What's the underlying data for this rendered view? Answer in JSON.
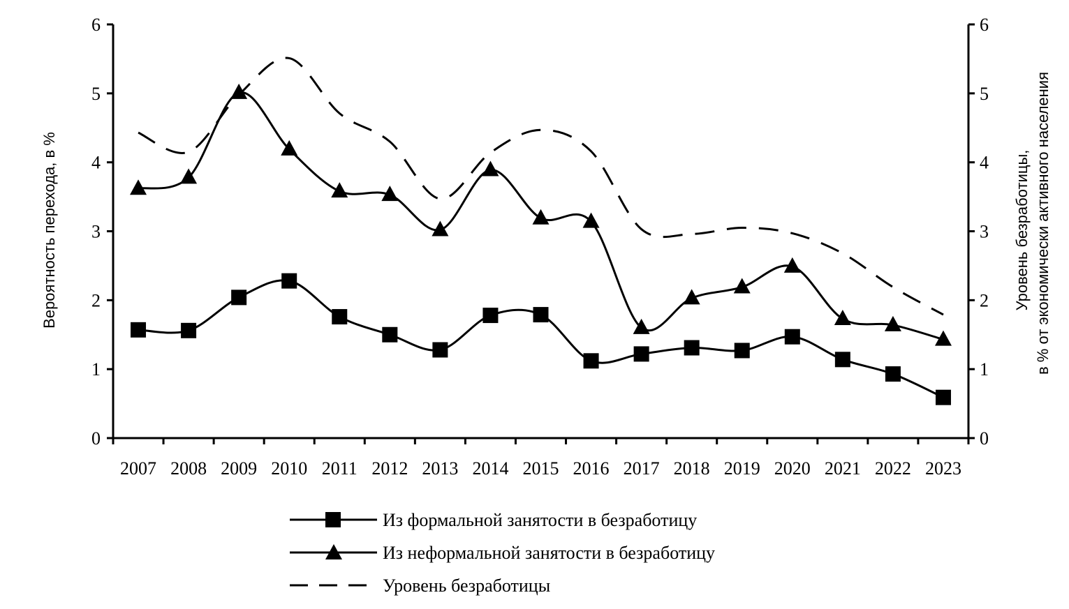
{
  "chart_data": {
    "type": "line",
    "categories": [
      "2007",
      "2008",
      "2009",
      "2010",
      "2011",
      "2012",
      "2013",
      "2014",
      "2015",
      "2016",
      "2017",
      "2018",
      "2019",
      "2020",
      "2021",
      "2022",
      "2023"
    ],
    "series": [
      {
        "name": "Из формальной занятости в безработицу",
        "axis": "left",
        "marker": "square",
        "line_style": "solid",
        "values": [
          1.57,
          1.56,
          2.04,
          2.28,
          1.76,
          1.5,
          1.28,
          1.78,
          1.79,
          1.12,
          1.22,
          1.31,
          1.27,
          1.47,
          1.14,
          0.93,
          0.59
        ]
      },
      {
        "name": "Из неформальной занятости в безработицу",
        "axis": "left",
        "marker": "triangle",
        "line_style": "solid",
        "values": [
          3.62,
          3.78,
          5.01,
          4.19,
          3.58,
          3.53,
          3.02,
          3.89,
          3.19,
          3.14,
          1.6,
          2.03,
          2.19,
          2.49,
          1.73,
          1.64,
          1.43
        ]
      },
      {
        "name": "Уровень безработицы",
        "axis": "right",
        "marker": "none",
        "line_style": "dashed",
        "values": [
          4.43,
          4.15,
          4.98,
          5.51,
          4.71,
          4.3,
          3.47,
          4.14,
          4.47,
          4.16,
          3.03,
          2.96,
          3.05,
          2.97,
          2.68,
          2.19,
          1.79
        ]
      }
    ],
    "y_left": {
      "label": "Вероятность перехода,  в %",
      "ylim": [
        0,
        6
      ],
      "ticks": [
        "0",
        "1",
        "2",
        "3",
        "4",
        "5",
        "6"
      ]
    },
    "y_right": {
      "label_line1": "Уровень безработицы,",
      "label_line2": "в % от экономически активного населения",
      "ylim": [
        0,
        6
      ],
      "ticks": [
        "0",
        "1",
        "2",
        "3",
        "4",
        "5",
        "6"
      ]
    },
    "grid": false,
    "legend_position": "bottom-center"
  },
  "colors": {
    "line": "#000000",
    "background": "#ffffff"
  }
}
